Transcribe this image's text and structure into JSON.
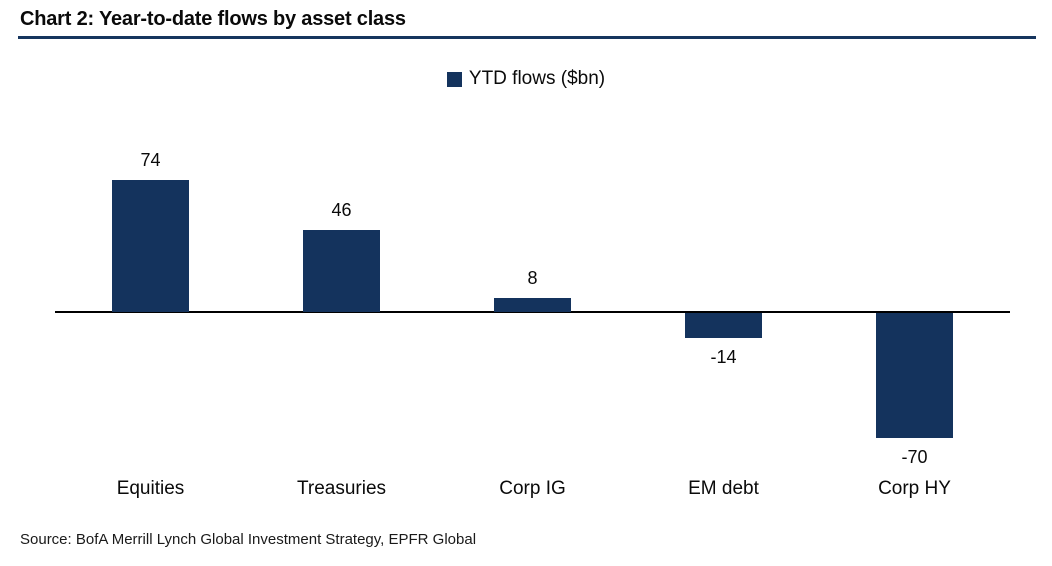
{
  "header": {
    "title": "Chart 2: Year-to-date flows by asset class"
  },
  "legend": {
    "label": "YTD flows ($bn)"
  },
  "footer": {
    "source": "Source:  BofA Merrill Lynch Global Investment Strategy, EPFR Global"
  },
  "colors": {
    "bar": "#14335d",
    "title_rule": "#16355e",
    "zero_line": "#000000"
  },
  "chart_data": {
    "type": "bar",
    "title": "Chart 2: Year-to-date flows by asset class",
    "legend_entries": [
      "YTD flows ($bn)"
    ],
    "legend_position": "top-center",
    "categories": [
      "Equities",
      "Treasuries",
      "Corp IG",
      "EM debt",
      "Corp HY"
    ],
    "values": [
      74,
      46,
      8,
      -14,
      -70
    ],
    "xlabel": "",
    "ylabel": "",
    "ylim": [
      -80,
      90
    ],
    "grid": false,
    "axis_visible": false,
    "data_labels": true,
    "source": "Source:  BofA Merrill Lynch Global Investment Strategy, EPFR Global"
  }
}
